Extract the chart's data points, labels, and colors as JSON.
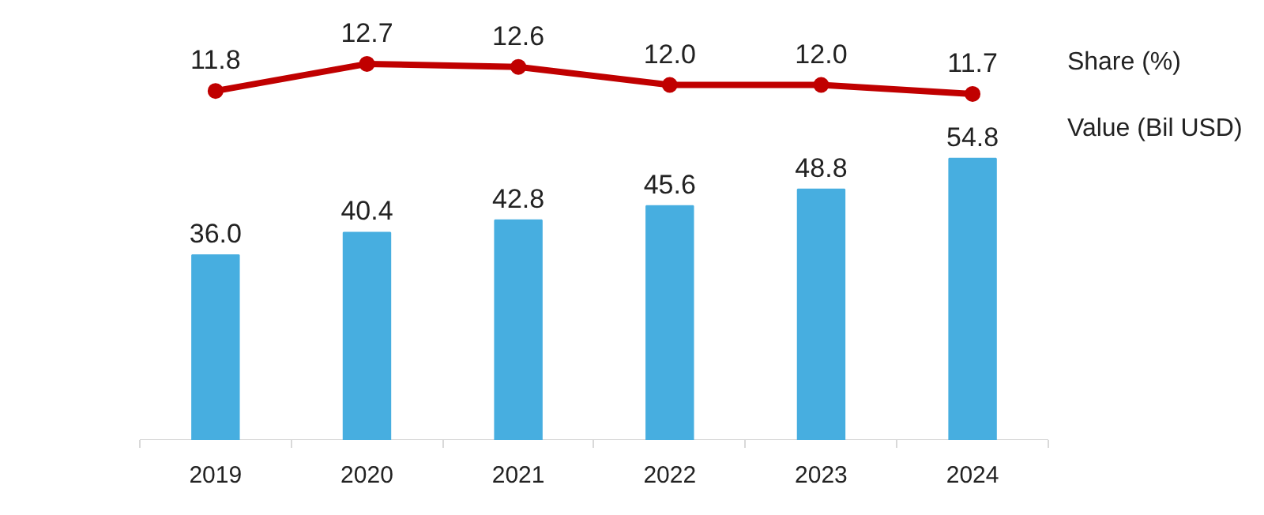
{
  "chart_data": [
    {
      "type": "line",
      "categories": [
        "2019",
        "2020",
        "2021",
        "2022",
        "2023",
        "2024"
      ],
      "tick_labels": false,
      "marker": "circle",
      "series": [
        {
          "name": "Share (%)",
          "color": "#c00000",
          "values": [
            11.8,
            12.7,
            12.6,
            12.0,
            12.0,
            11.7
          ],
          "value_labels": [
            "11.8",
            "12.7",
            "12.6",
            "12.0",
            "12.0",
            "11.7"
          ]
        }
      ]
    },
    {
      "type": "bar",
      "categories": [
        "2019",
        "2020",
        "2021",
        "2022",
        "2023",
        "2024"
      ],
      "series": [
        {
          "name": "Value (Bil USD)",
          "color": "#47aee0",
          "values": [
            36.0,
            40.4,
            42.8,
            45.6,
            48.8,
            54.8
          ],
          "value_labels": [
            "36.0",
            "40.4",
            "42.8",
            "45.6",
            "48.8",
            "54.8"
          ]
        }
      ]
    }
  ]
}
